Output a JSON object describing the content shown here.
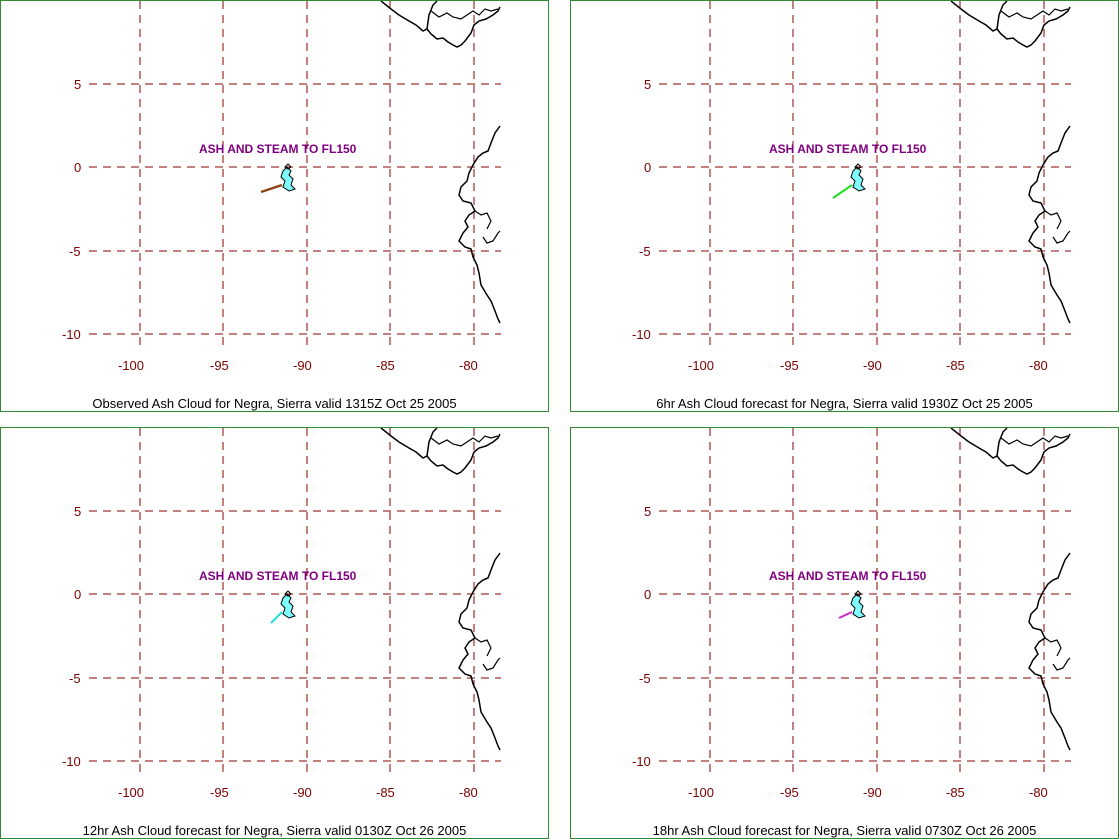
{
  "map": {
    "lon_ticks": [
      "-100",
      "-95",
      "-90",
      "-85",
      "-80"
    ],
    "lat_ticks": [
      "5",
      "0",
      "-5",
      "-10"
    ],
    "advisory_text": "ASH AND STEAM TO FL150",
    "colors": {
      "grid": "#8b0000",
      "coast": "#000000",
      "border": "#2e8b2e",
      "tick_label": "#7a0000",
      "advisory": "#800080"
    }
  },
  "panels": [
    {
      "caption": "Observed Ash Cloud for Negra,  Sierra valid 1315Z Oct 25 2005",
      "plume_color": "#8b4513"
    },
    {
      "caption": "6hr Ash Cloud forecast for Negra,  Sierra valid 1930Z Oct 25 2005",
      "plume_color": "#22dd22"
    },
    {
      "caption": "12hr Ash Cloud forecast for Negra,  Sierra valid 0130Z Oct 26 2005",
      "plume_color": "#22dddd"
    },
    {
      "caption": "18hr Ash Cloud forecast for Negra,  Sierra valid 0730Z Oct 26 2005",
      "plume_color": "#cc22cc"
    }
  ]
}
